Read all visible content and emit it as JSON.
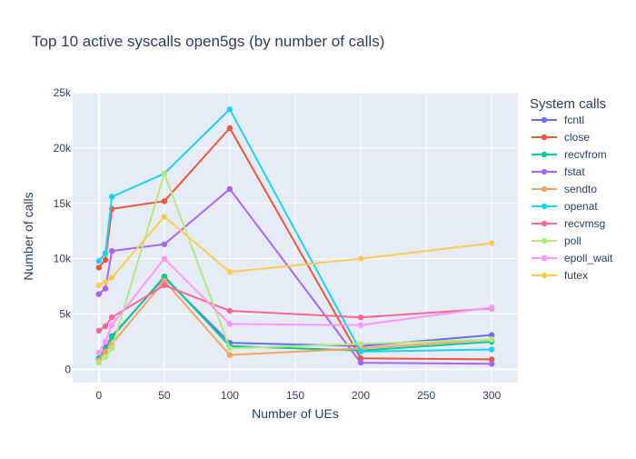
{
  "chart_data": {
    "type": "line",
    "title": "Top 10 active syscalls open5gs (by number of calls)",
    "xlabel": "Number of UEs",
    "ylabel": "Number of calls",
    "legend_title": "System calls",
    "legend_position": "right",
    "grid": true,
    "background_color": "#e5ecf6",
    "xlim": [
      -20,
      320
    ],
    "ylim": [
      -1200,
      25000
    ],
    "x_ticks": [
      0,
      50,
      100,
      150,
      200,
      250,
      300
    ],
    "x_tick_labels": [
      "0",
      "50",
      "100",
      "150",
      "200",
      "250",
      "300"
    ],
    "y_ticks": [
      0,
      5000,
      10000,
      15000,
      20000,
      25000
    ],
    "y_tick_labels": [
      "0",
      "5k",
      "10k",
      "15k",
      "20k",
      "25k"
    ],
    "x": [
      0,
      5,
      10,
      50,
      100,
      200,
      300
    ],
    "series": [
      {
        "name": "fcntl",
        "color": "#636efa",
        "values": [
          1000,
          2000,
          3000,
          8300,
          2400,
          2100,
          3100
        ]
      },
      {
        "name": "close",
        "color": "#ef553b",
        "values": [
          9200,
          9900,
          14500,
          15200,
          21800,
          1000,
          900
        ]
      },
      {
        "name": "recvfrom",
        "color": "#00cc96",
        "values": [
          1000,
          1800,
          2900,
          8400,
          2100,
          1700,
          2500
        ]
      },
      {
        "name": "fstat",
        "color": "#ab63fa",
        "values": [
          6800,
          7300,
          10700,
          11300,
          16300,
          600,
          500
        ]
      },
      {
        "name": "sendto",
        "color": "#ffa15a",
        "values": [
          800,
          1600,
          2300,
          8000,
          1300,
          1900,
          2700
        ]
      },
      {
        "name": "openat",
        "color": "#19d3f3",
        "values": [
          9800,
          10500,
          15600,
          17700,
          23500,
          1600,
          1800
        ]
      },
      {
        "name": "recvmsg",
        "color": "#ff6692",
        "values": [
          3500,
          3900,
          4700,
          7600,
          5300,
          4700,
          5500
        ]
      },
      {
        "name": "poll",
        "color": "#b6e880",
        "values": [
          600,
          1100,
          1900,
          17700,
          1900,
          2300,
          2700
        ]
      },
      {
        "name": "epoll_wait",
        "color": "#ff97ff",
        "values": [
          1500,
          2500,
          4000,
          10000,
          4100,
          4000,
          5600
        ]
      },
      {
        "name": "futex",
        "color": "#fecb52",
        "values": [
          7600,
          7900,
          8300,
          13800,
          8800,
          10000,
          11400
        ]
      }
    ]
  }
}
